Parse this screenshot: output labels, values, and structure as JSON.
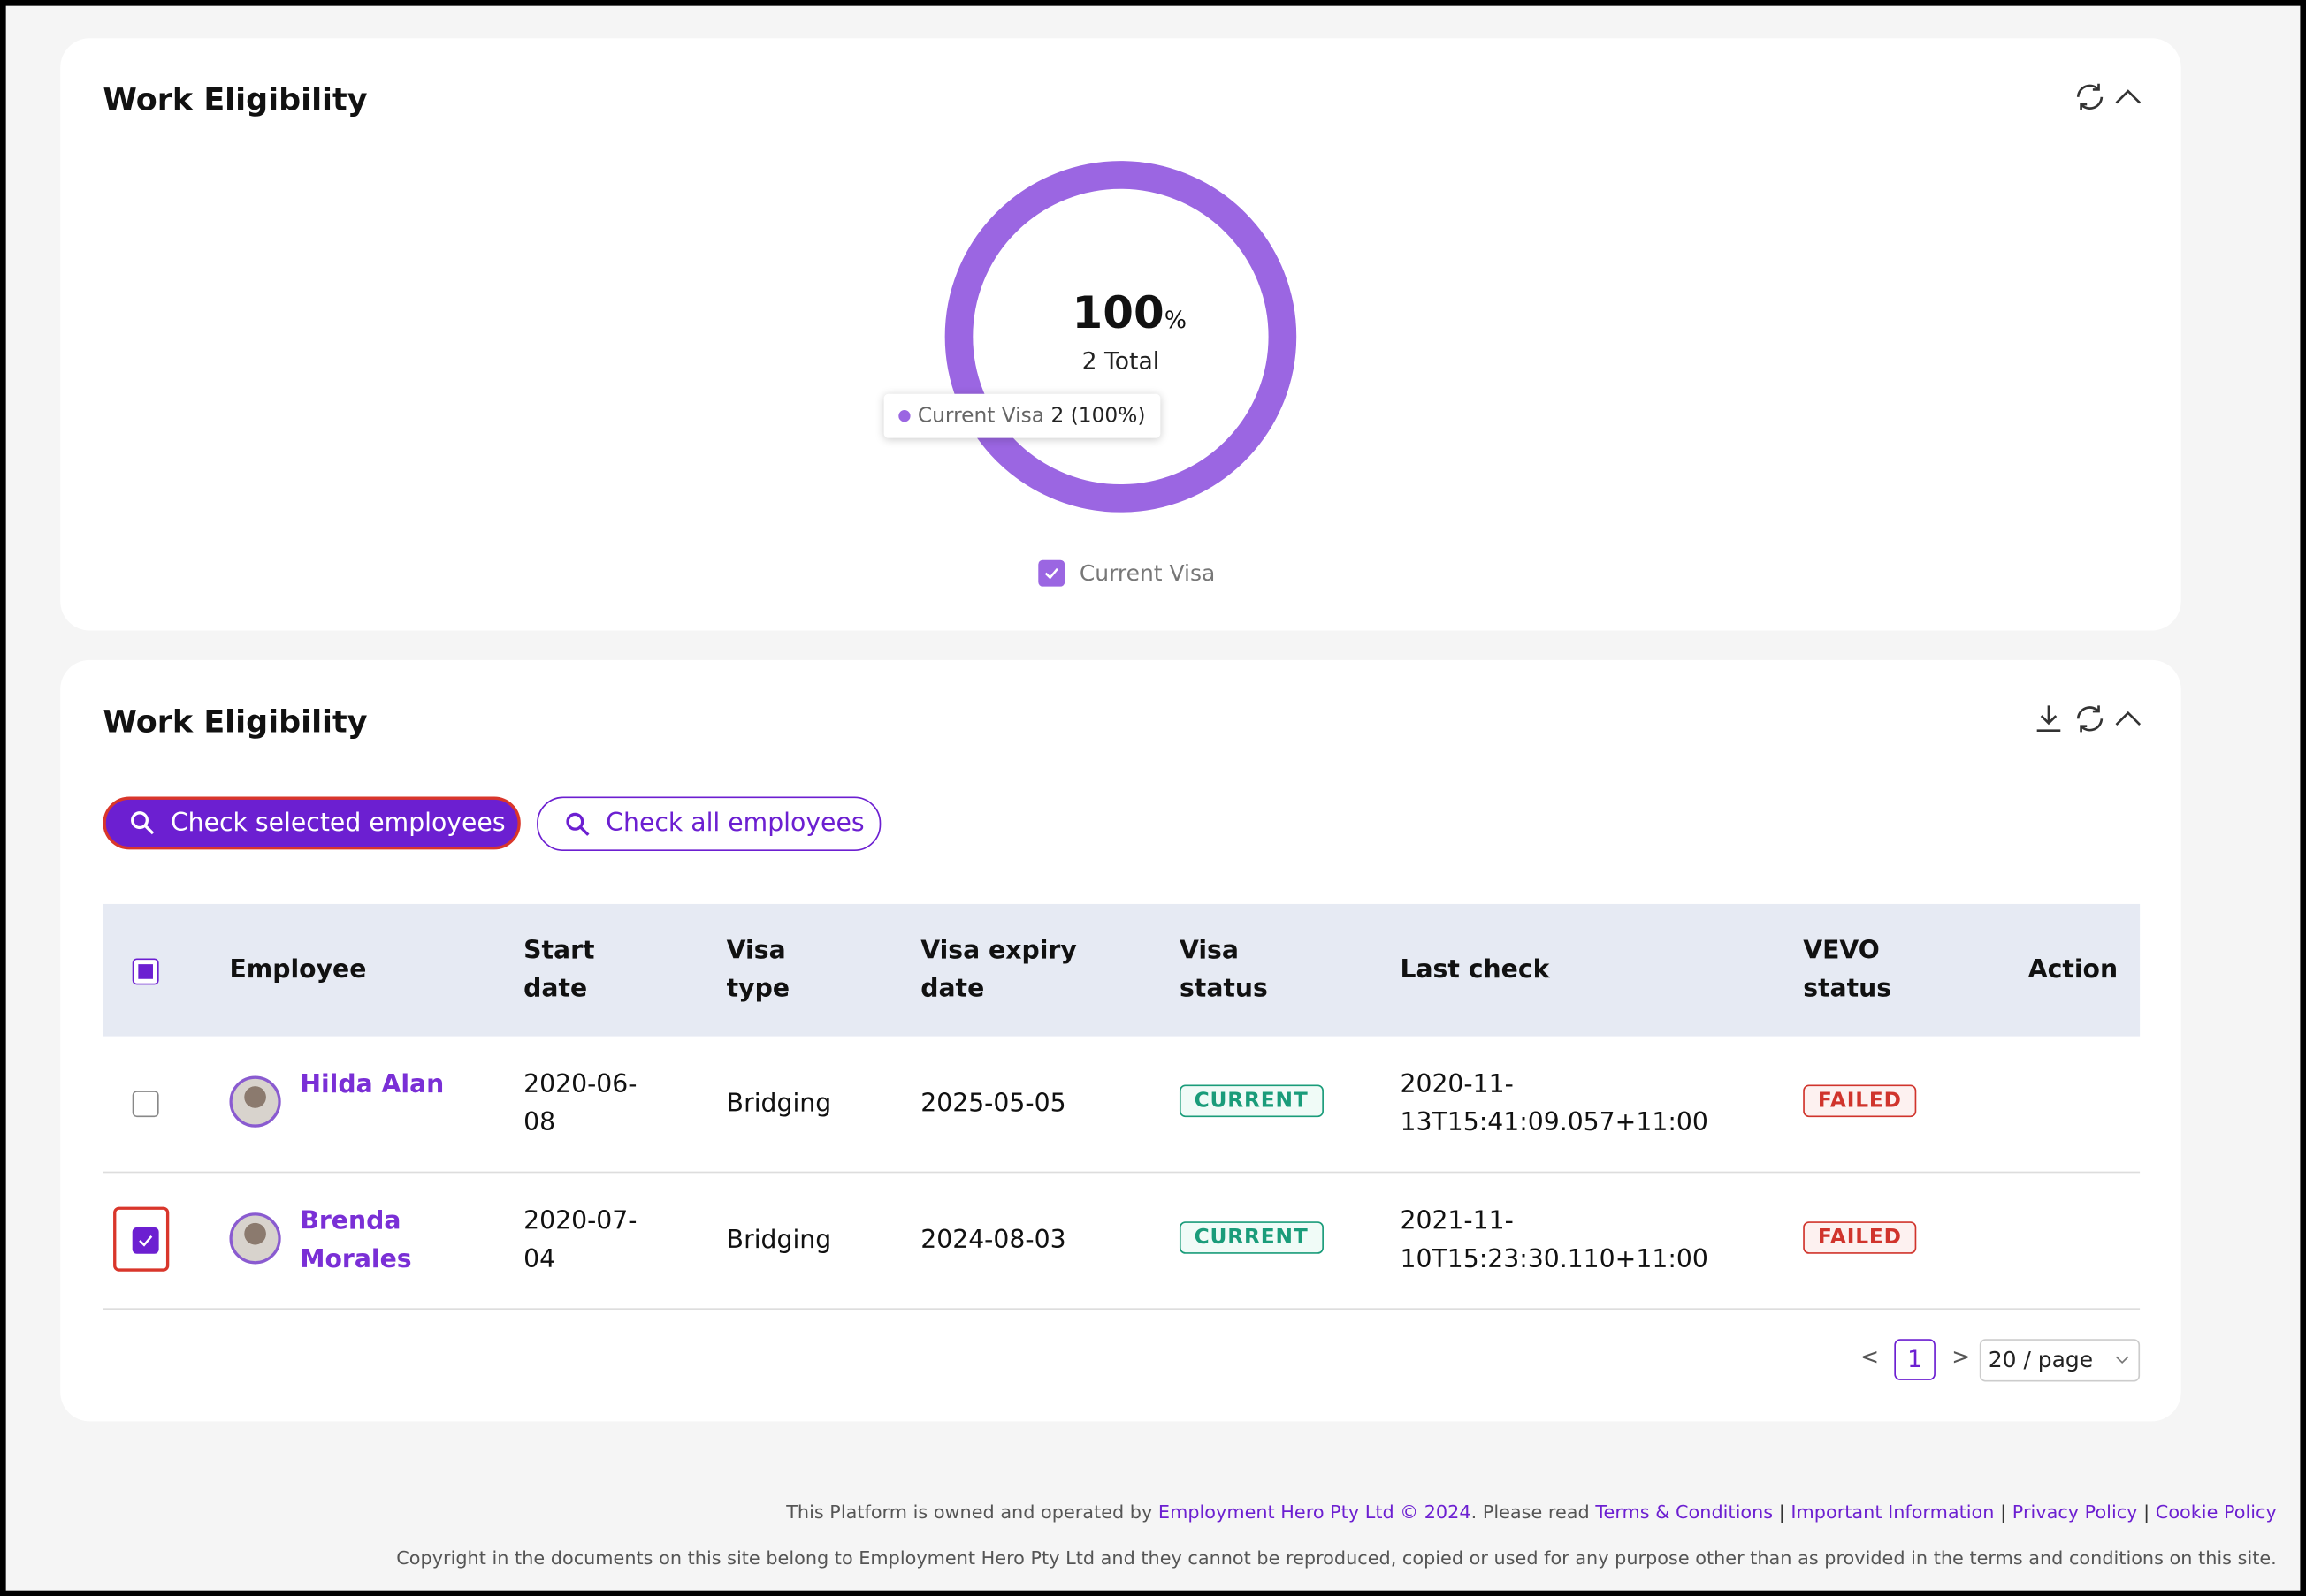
{
  "chart_card": {
    "title": "Work Eligibility",
    "donut": {
      "percent": 100,
      "unit": "%",
      "total_label": "2 Total",
      "color": "#9b66e2",
      "tooltip": {
        "name": "Current Visa",
        "value": "2 (100%)"
      },
      "legend": "Current Visa"
    }
  },
  "table_card": {
    "title": "Work Eligibility",
    "buttons": {
      "selected": "Check selected employees",
      "all": "Check all employees"
    },
    "table": {
      "columns": [
        "Employee",
        "Start date",
        "Visa type",
        "Visa expiry date",
        "Visa status",
        "Last check",
        "VEVO status",
        "Action"
      ],
      "rows": [
        {
          "employee": "Hilda Alan",
          "start": "2020-06-08",
          "visa_type": "Bridging",
          "expiry": "2025-05-05",
          "visa_status": "CURRENT",
          "last_check": "2020-11-13T15:41:09.057+11:00",
          "vevo": "FAILED",
          "checked": false
        },
        {
          "employee": "Brenda Morales",
          "start": "2020-07-04",
          "visa_type": "Bridging",
          "expiry": "2024-08-03",
          "visa_status": "CURRENT",
          "last_check": "2021-11-10T15:23:30.110+11:00",
          "vevo": "FAILED",
          "checked": true
        }
      ]
    },
    "pagination": {
      "prev": "<",
      "page": "1",
      "next": ">",
      "page_size": "20 / page"
    }
  },
  "footer": {
    "prefix": "This Platform is owned and operated by",
    "company": "Employment Hero Pty Ltd © 2024",
    "read": ". Please read",
    "links": [
      "Terms & Conditions",
      "Important Information",
      "Privacy Policy",
      "Cookie Policy"
    ],
    "separator": "|",
    "copyright": "Copyright in the documents on this site belong to Employment Hero Pty Ltd and they cannot be reproduced, copied or used for any purpose other than as provided in the terms and conditions on this site."
  }
}
